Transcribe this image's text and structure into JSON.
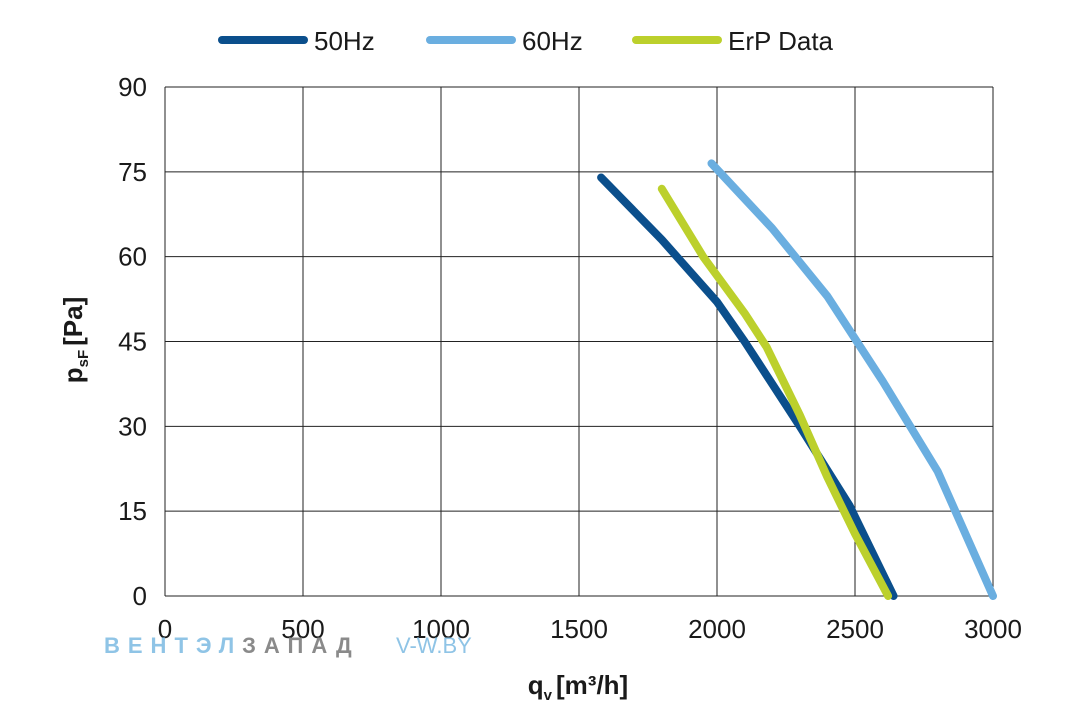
{
  "chart_data": {
    "type": "line",
    "title": "",
    "xlabel": "q",
    "xlabel_sub": "v",
    "xlabel_unit": "[m³/h]",
    "ylabel": "p",
    "ylabel_sub": "sF",
    "ylabel_unit": "[Pa]",
    "xlim": [
      0,
      3000
    ],
    "ylim": [
      0,
      90
    ],
    "x_ticks": [
      "0",
      "500",
      "1000",
      "1500",
      "2000",
      "2500",
      "3000"
    ],
    "y_ticks": [
      "0",
      "15",
      "30",
      "45",
      "60",
      "75",
      "90"
    ],
    "grid": true,
    "legend_position": "top",
    "series": [
      {
        "name": "50Hz",
        "color": "#0b4f8c",
        "points": [
          [
            1580,
            74
          ],
          [
            1800,
            63
          ],
          [
            2000,
            52
          ],
          [
            2100,
            45
          ],
          [
            2300,
            30
          ],
          [
            2480,
            16
          ],
          [
            2640,
            0
          ]
        ]
      },
      {
        "name": "60Hz",
        "color": "#6aaee0",
        "points": [
          [
            1980,
            76.5
          ],
          [
            2200,
            65
          ],
          [
            2400,
            53
          ],
          [
            2600,
            38
          ],
          [
            2800,
            22
          ],
          [
            3000,
            0
          ]
        ]
      },
      {
        "name": "ErP Data",
        "color": "#bcd02c",
        "points": [
          [
            1800,
            72
          ],
          [
            1950,
            60
          ],
          [
            2100,
            50
          ],
          [
            2180,
            44
          ],
          [
            2300,
            32
          ],
          [
            2400,
            21
          ],
          [
            2500,
            11
          ],
          [
            2620,
            0
          ]
        ]
      }
    ]
  },
  "watermark": {
    "part1": "ВЕНТЭЛ",
    "part2": "ЗАПАД",
    "url": "V-W.BY"
  }
}
